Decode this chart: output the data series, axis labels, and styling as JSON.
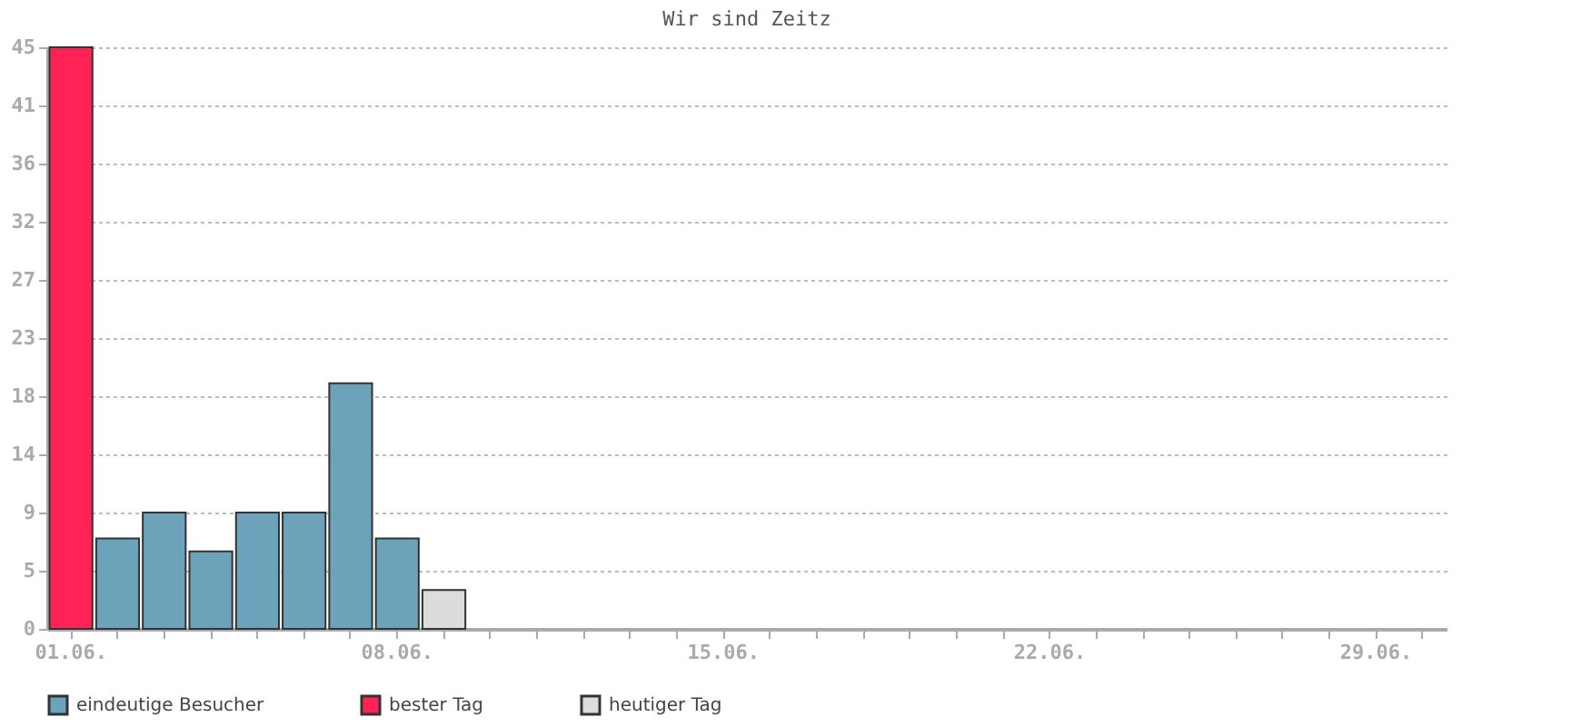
{
  "chart_data": {
    "type": "bar",
    "title": "Wir sind Zeitz",
    "categories": [
      "01.06.",
      null,
      null,
      null,
      null,
      null,
      null,
      "08.06.",
      null,
      null,
      null,
      null,
      null,
      null,
      "15.06.",
      null,
      null,
      null,
      null,
      null,
      null,
      "22.06.",
      null,
      null,
      null,
      null,
      null,
      null,
      "29.06.",
      null
    ],
    "series": [
      {
        "name": "eindeutige Besucher",
        "color": "#6ca3bb",
        "values": [
          null,
          7,
          9,
          6,
          9,
          9,
          19,
          7,
          null,
          null,
          null,
          null,
          null,
          null,
          null,
          null,
          null,
          null,
          null,
          null,
          null,
          null,
          null,
          null,
          null,
          null,
          null,
          null,
          null,
          null
        ]
      },
      {
        "name": "bester Tag",
        "color": "#ff2255",
        "values": [
          45,
          null,
          null,
          null,
          null,
          null,
          null,
          null,
          null,
          null,
          null,
          null,
          null,
          null,
          null,
          null,
          null,
          null,
          null,
          null,
          null,
          null,
          null,
          null,
          null,
          null,
          null,
          null,
          null,
          null
        ]
      },
      {
        "name": "heutiger Tag",
        "color": "#dcdcdc",
        "values": [
          null,
          null,
          null,
          null,
          null,
          null,
          null,
          null,
          3,
          null,
          null,
          null,
          null,
          null,
          null,
          null,
          null,
          null,
          null,
          null,
          null,
          null,
          null,
          null,
          null,
          null,
          null,
          null,
          null,
          null
        ]
      }
    ],
    "ylim": [
      0,
      45
    ],
    "yticks": [
      0,
      {
        "value": 4.5,
        "label": "5"
      },
      9,
      {
        "value": 13.5,
        "label": "14"
      },
      18,
      {
        "value": 22.5,
        "label": "23"
      },
      27,
      {
        "value": 31.5,
        "label": "32"
      },
      36,
      {
        "value": 40.5,
        "label": "41"
      },
      45
    ],
    "grid": "y",
    "legend": "bottom"
  }
}
